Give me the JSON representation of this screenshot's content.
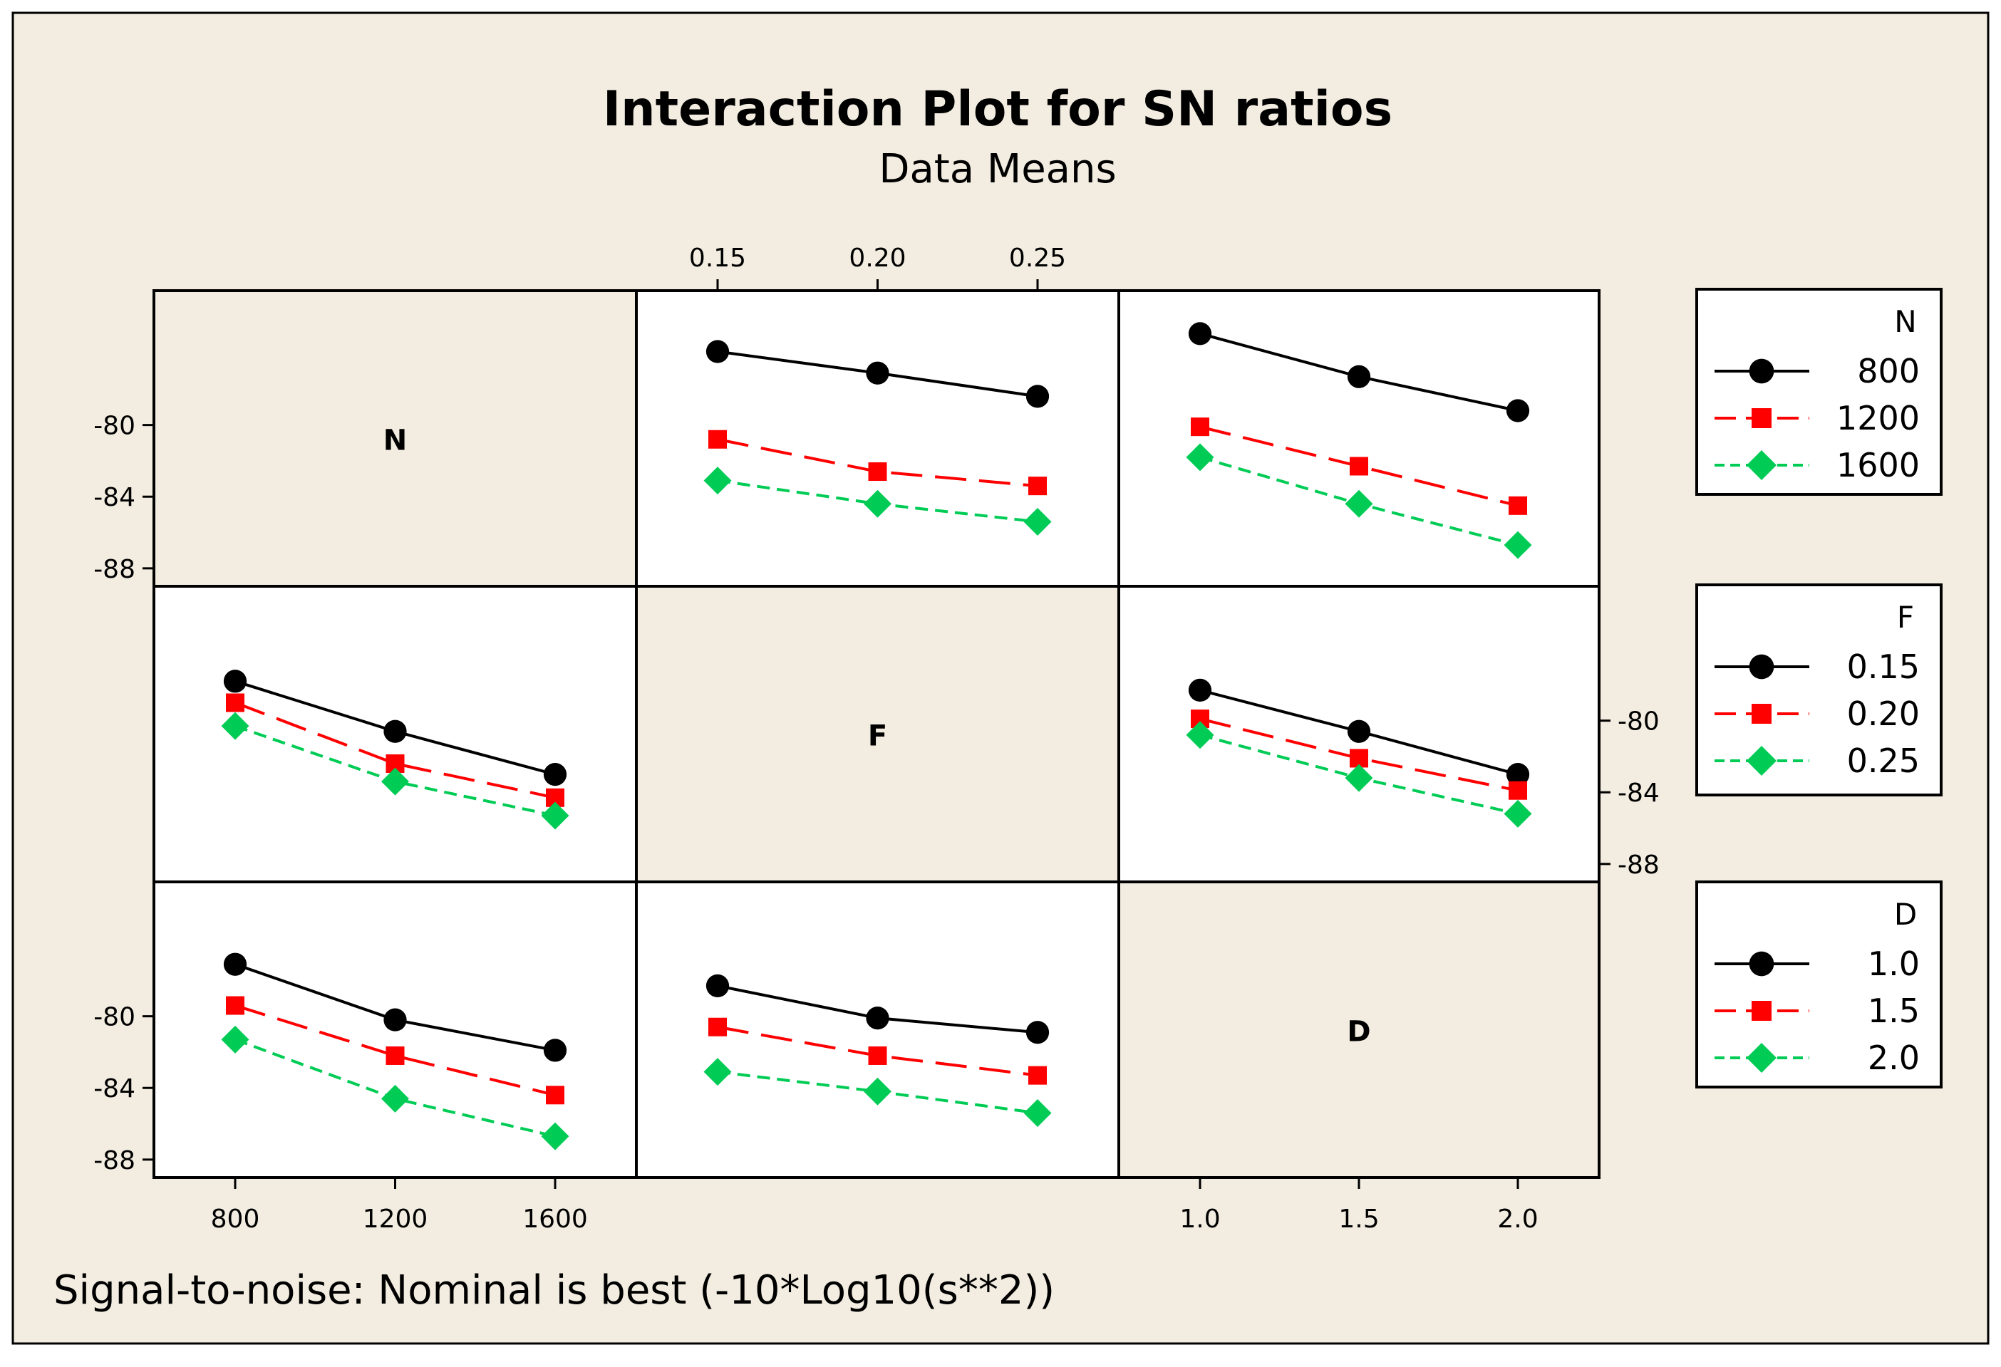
{
  "chart_data": {
    "type": "line",
    "title": "Interaction Plot for SN ratios",
    "subtitle": "Data Means",
    "footnote": "Signal-to-noise: Nominal is best (-10*Log10(s**2))",
    "ylim": [
      -89,
      -72.5
    ],
    "y_ticks": [
      -88,
      -84,
      -80
    ],
    "factors": [
      {
        "name": "N",
        "levels": [
          "800",
          "1200",
          "1600"
        ]
      },
      {
        "name": "F",
        "levels": [
          "0.15",
          "0.20",
          "0.25"
        ]
      },
      {
        "name": "D",
        "levels": [
          "1.0",
          "1.5",
          "2.0"
        ]
      }
    ],
    "series_colors": [
      "#000000",
      "#ff0000",
      "#00cc55"
    ],
    "legends": [
      {
        "title": "N",
        "entries": [
          "800",
          "1200",
          "1600"
        ]
      },
      {
        "title": "F",
        "entries": [
          "0.15",
          "0.20",
          "0.25"
        ]
      },
      {
        "title": "D",
        "entries": [
          "1.0",
          "1.5",
          "2.0"
        ]
      }
    ],
    "panels": [
      {
        "row": 0,
        "col": 1,
        "x_factor": "F",
        "trace_factor": "N",
        "series": [
          {
            "name": "800",
            "values": [
              -75.9,
              -77.1,
              -78.4
            ]
          },
          {
            "name": "1200",
            "values": [
              -80.8,
              -82.6,
              -83.4
            ]
          },
          {
            "name": "1600",
            "values": [
              -83.1,
              -84.4,
              -85.4
            ]
          }
        ]
      },
      {
        "row": 0,
        "col": 2,
        "x_factor": "D",
        "trace_factor": "N",
        "series": [
          {
            "name": "800",
            "values": [
              -74.9,
              -77.3,
              -79.2
            ]
          },
          {
            "name": "1200",
            "values": [
              -80.1,
              -82.3,
              -84.5
            ]
          },
          {
            "name": "1600",
            "values": [
              -81.8,
              -84.4,
              -86.7
            ]
          }
        ]
      },
      {
        "row": 1,
        "col": 0,
        "x_factor": "N",
        "trace_factor": "F",
        "series": [
          {
            "name": "0.15",
            "values": [
              -77.8,
              -80.6,
              -83.0
            ]
          },
          {
            "name": "0.20",
            "values": [
              -79.0,
              -82.4,
              -84.3
            ]
          },
          {
            "name": "0.25",
            "values": [
              -80.3,
              -83.4,
              -85.3
            ]
          }
        ]
      },
      {
        "row": 1,
        "col": 2,
        "x_factor": "D",
        "trace_factor": "F",
        "series": [
          {
            "name": "0.15",
            "values": [
              -78.3,
              -80.6,
              -83.0
            ]
          },
          {
            "name": "0.20",
            "values": [
              -79.9,
              -82.1,
              -83.9
            ]
          },
          {
            "name": "0.25",
            "values": [
              -80.8,
              -83.2,
              -85.2
            ]
          }
        ]
      },
      {
        "row": 2,
        "col": 0,
        "x_factor": "N",
        "trace_factor": "D",
        "series": [
          {
            "name": "1.0",
            "values": [
              -77.1,
              -80.2,
              -81.9
            ]
          },
          {
            "name": "1.5",
            "values": [
              -79.4,
              -82.2,
              -84.4
            ]
          },
          {
            "name": "2.0",
            "values": [
              -81.3,
              -84.6,
              -86.7
            ]
          }
        ]
      },
      {
        "row": 2,
        "col": 1,
        "x_factor": "F",
        "trace_factor": "D",
        "series": [
          {
            "name": "1.0",
            "values": [
              -78.3,
              -80.1,
              -80.9
            ]
          },
          {
            "name": "1.5",
            "values": [
              -80.6,
              -82.2,
              -83.3
            ]
          },
          {
            "name": "2.0",
            "values": [
              -83.1,
              -84.2,
              -85.4
            ]
          }
        ]
      }
    ]
  }
}
